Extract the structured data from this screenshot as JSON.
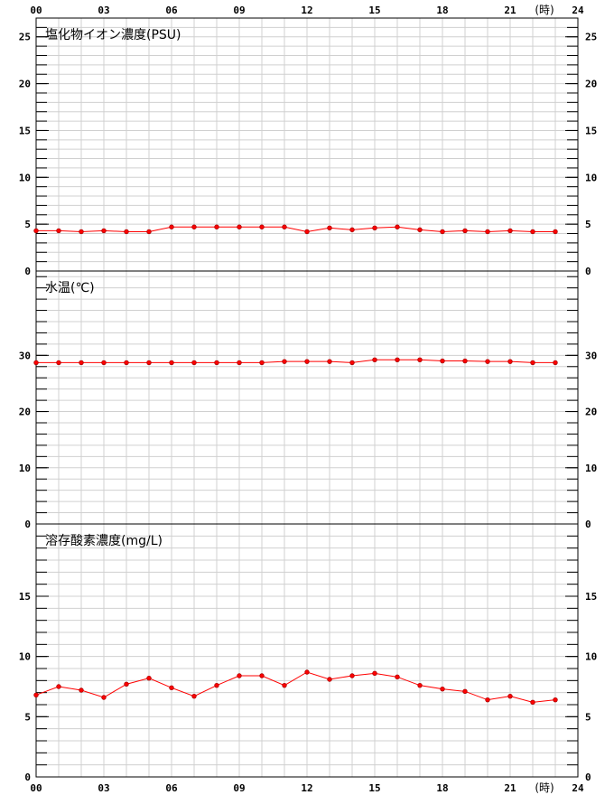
{
  "chart_data": {
    "type": "line",
    "x_axis": {
      "ticks": [
        "00",
        "03",
        "06",
        "09",
        "12",
        "15",
        "18",
        "21",
        "24"
      ],
      "unit": "(時)",
      "range": [
        0,
        24
      ]
    },
    "series_color": "#ff0000",
    "marker_fill": "#ff0000",
    "marker_stroke": "#aa0000",
    "grid_color": "#d0d0d0",
    "x": [
      0,
      1,
      2,
      3,
      4,
      5,
      6,
      7,
      8,
      9,
      10,
      11,
      12,
      13,
      14,
      15,
      16,
      17,
      18,
      19,
      20,
      21,
      22,
      23
    ],
    "panels": [
      {
        "title": "塩化物イオン濃度(PSU)",
        "ylim": [
          0,
          27
        ],
        "y_ticks": [
          0,
          5,
          10,
          15,
          20,
          25
        ],
        "y_tick_labels": [
          "0",
          "5",
          "10",
          "15",
          "20",
          "25"
        ],
        "values": [
          4.3,
          4.3,
          4.2,
          4.3,
          4.2,
          4.2,
          4.7,
          4.7,
          4.7,
          4.7,
          4.7,
          4.7,
          4.2,
          4.6,
          4.4,
          4.6,
          4.7,
          4.4,
          4.2,
          4.3,
          4.2,
          4.3,
          4.2,
          4.2
        ]
      },
      {
        "title": "水温(℃)",
        "ylim": [
          0,
          45
        ],
        "y_ticks": [
          0,
          10,
          20,
          30
        ],
        "y_tick_labels": [
          "0",
          "10",
          "20",
          "30"
        ],
        "values": [
          28.7,
          28.7,
          28.7,
          28.7,
          28.7,
          28.7,
          28.7,
          28.7,
          28.7,
          28.7,
          28.7,
          28.9,
          28.9,
          28.9,
          28.7,
          29.2,
          29.2,
          29.2,
          29.0,
          29.0,
          28.9,
          28.9,
          28.7,
          28.7
        ]
      },
      {
        "title": "溶存酸素濃度(mg/L)",
        "ylim": [
          0,
          21
        ],
        "y_ticks": [
          0,
          5,
          10,
          15
        ],
        "y_tick_labels": [
          "0",
          "5",
          "10",
          "15"
        ],
        "values": [
          6.8,
          7.5,
          7.2,
          6.6,
          7.7,
          8.2,
          7.4,
          6.7,
          7.6,
          8.4,
          8.4,
          7.6,
          8.7,
          8.1,
          8.4,
          8.6,
          8.3,
          7.6,
          7.3,
          7.1,
          6.4,
          6.7,
          6.2,
          6.4
        ]
      }
    ]
  }
}
